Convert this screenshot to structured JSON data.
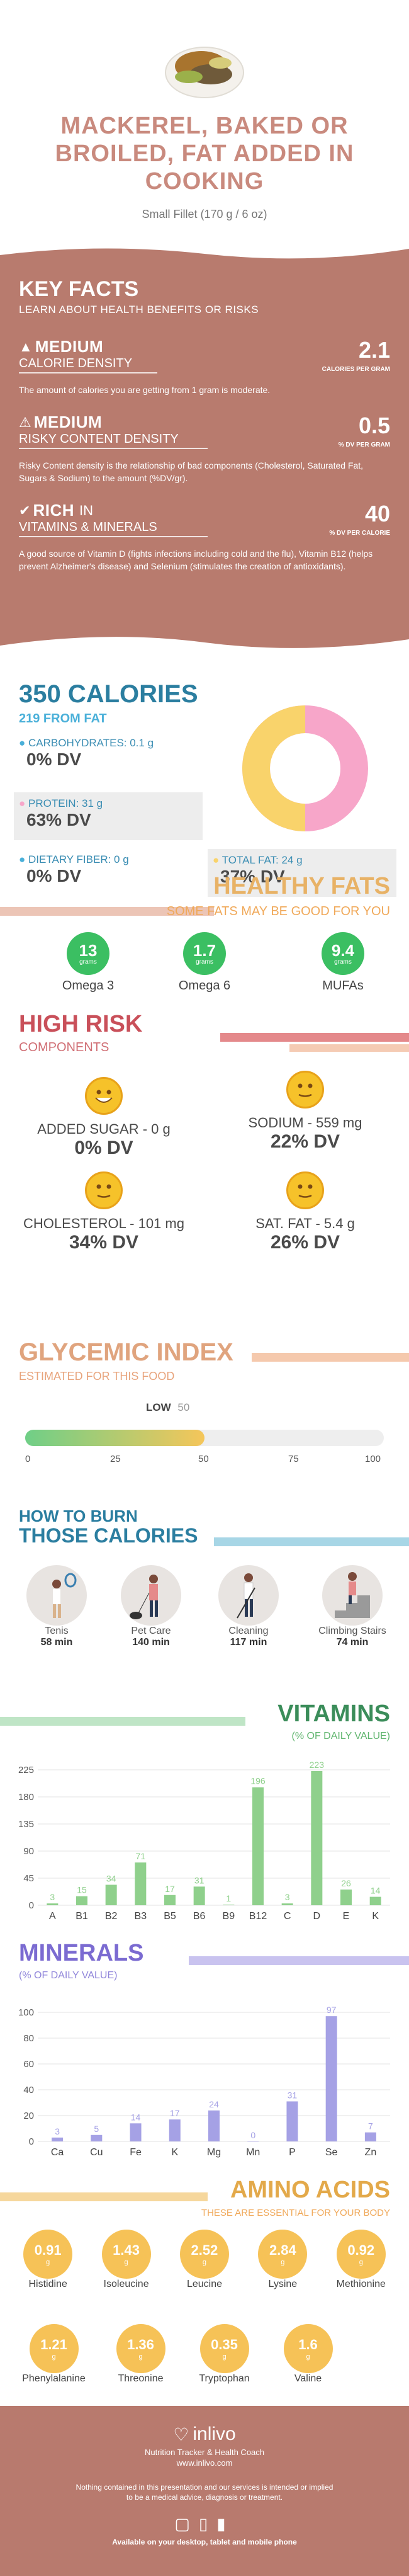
{
  "header": {
    "title_line1": "MACKEREL, BAKED OR",
    "title_line2": "BROILED, FAT ADDED IN",
    "title_line3": "COOKING",
    "serving": "Small Fillet (170 g / 6 oz)"
  },
  "key_facts": {
    "title": "KEY FACTS",
    "subtitle": "LEARN ABOUT HEALTH BENEFITS OR RISKS",
    "facts": [
      {
        "badge": "MEDIUM",
        "label": "CALORIE DENSITY",
        "value": "2.1",
        "unit": "CALORIES PER GRAM",
        "desc": "The amount of calories you are getting from 1 gram is moderate."
      },
      {
        "badge": "MEDIUM",
        "label": "RISKY CONTENT DENSITY",
        "value": "0.5",
        "unit": "% DV PER GRAM",
        "desc": "Risky Content density is the relationship of bad components (Cholesterol, Saturated Fat, Sugars & Sodium) to the amount (%DV/gr)."
      },
      {
        "badge": "RICH",
        "badge_suffix": "IN",
        "label": "VITAMINS & MINERALS",
        "value": "40",
        "unit": "% DV PER CALORIE",
        "desc": "A good source of Vitamin D (fights infections including cold and the flu), Vitamin B12 (helps prevent Alzheimer's disease) and Selenium (stimulates the creation of antioxidants)."
      }
    ]
  },
  "calories": {
    "title": "350 CALORIES",
    "subtitle": "219 FROM FAT",
    "carbs_label": "CARBOHYDRATES: 0.1 g",
    "carbs_dv": "0% DV",
    "protein_label": "PROTEIN: 31 g",
    "protein_dv": "63% DV",
    "fiber_label": "DIETARY FIBER: 0 g",
    "fiber_dv": "0% DV",
    "fat_label": "TOTAL FAT: 24 g",
    "fat_dv": "37% DV",
    "colors": {
      "protein": "#f7a6c9",
      "fat": "#f9d36b",
      "carbs": "#4ab0d9"
    }
  },
  "healthy_fats": {
    "title": "HEALTHY FATS",
    "subtitle": "SOME FATS MAY BE GOOD FOR YOU",
    "items": [
      {
        "value": "13",
        "unit": "grams",
        "label": "Omega 3"
      },
      {
        "value": "1.7",
        "unit": "grams",
        "label": "Omega 6"
      },
      {
        "value": "9.4",
        "unit": "grams",
        "label": "MUFAs"
      }
    ]
  },
  "high_risk": {
    "title": "HIGH RISK",
    "subtitle": "COMPONENTS",
    "items": [
      {
        "label": "ADDED SUGAR - 0 g",
        "dv": "0% DV",
        "face": "happy-face-icon"
      },
      {
        "label": "SODIUM - 559 mg",
        "dv": "22% DV",
        "face": "neutral-face-icon"
      },
      {
        "label": "CHOLESTEROL - 101 mg",
        "dv": "34% DV",
        "face": "neutral-face-icon"
      },
      {
        "label": "SAT. FAT - 5.4 g",
        "dv": "26% DV",
        "face": "neutral-face-icon"
      }
    ]
  },
  "glycemic": {
    "title": "GLYCEMIC INDEX",
    "subtitle": "ESTIMATED FOR THIS FOOD",
    "low_label": "LOW",
    "value": "50",
    "ticks": [
      "0",
      "25",
      "50",
      "75",
      "100"
    ]
  },
  "burn": {
    "title1": "HOW TO BURN",
    "title2": "THOSE CALORIES",
    "items": [
      {
        "label": "Tenis",
        "time": "58 min",
        "icon": "tennis-player-icon"
      },
      {
        "label": "Pet Care",
        "time": "140 min",
        "icon": "dog-walker-icon"
      },
      {
        "label": "Cleaning",
        "time": "117 min",
        "icon": "cleaning-person-icon"
      },
      {
        "label": "Climbing Stairs",
        "time": "74 min",
        "icon": "stair-climber-icon"
      }
    ]
  },
  "vitamins": {
    "title": "VITAMINS",
    "subtitle": "(% OF DAILY VALUE)"
  },
  "minerals": {
    "title": "MINERALS",
    "subtitle": "(% OF DAILY VALUE)"
  },
  "amino": {
    "title": "AMINO ACIDS",
    "subtitle": "THESE ARE ESSENTIAL FOR YOUR BODY",
    "items": [
      {
        "value": "0.91",
        "unit": "g",
        "label": "Histidine"
      },
      {
        "value": "1.43",
        "unit": "g",
        "label": "Isoleucine"
      },
      {
        "value": "2.52",
        "unit": "g",
        "label": "Leucine"
      },
      {
        "value": "2.84",
        "unit": "g",
        "label": "Lysine"
      },
      {
        "value": "0.92",
        "unit": "g",
        "label": "Methionine"
      },
      {
        "value": "1.21",
        "unit": "g",
        "label": "Phenylalanine"
      },
      {
        "value": "1.36",
        "unit": "g",
        "label": "Threonine"
      },
      {
        "value": "0.35",
        "unit": "g",
        "label": "Tryptophan"
      },
      {
        "value": "1.6",
        "unit": "g",
        "label": "Valine"
      }
    ]
  },
  "footer": {
    "brand": "inlivo",
    "tagline": "Nutrition Tracker & Health Coach",
    "url": "www.inlivo.com",
    "disclaimer1": "Nothing contained in this presentation and our services is intended or implied",
    "disclaimer2": "to be a medical advice, diagnosis or treatment.",
    "available": "Available on your desktop, tablet and mobile phone"
  },
  "chart_data": [
    {
      "type": "bar",
      "title": "VITAMINS",
      "ylabel": "(% OF DAILY VALUE)",
      "categories": [
        "A",
        "B1",
        "B2",
        "B3",
        "B5",
        "B6",
        "B9",
        "B12",
        "C",
        "D",
        "E",
        "K"
      ],
      "values": [
        3,
        15,
        34,
        71,
        17,
        31,
        1,
        196,
        3,
        223,
        26,
        14
      ],
      "ylim": [
        0,
        225
      ],
      "yticks": [
        "0",
        "45",
        "90",
        "135",
        "180",
        "225"
      ],
      "color": "#8fd08c"
    },
    {
      "type": "bar",
      "title": "MINERALS",
      "ylabel": "(% OF DAILY VALUE)",
      "categories": [
        "Ca",
        "Cu",
        "Fe",
        "K",
        "Mg",
        "Mn",
        "P",
        "Se",
        "Zn"
      ],
      "values": [
        3,
        5,
        14,
        17,
        24,
        0,
        31,
        97,
        7
      ],
      "ylim": [
        0,
        100
      ],
      "yticks": [
        "0",
        "20",
        "40",
        "60",
        "80",
        "100"
      ],
      "color": "#a5a1e5"
    }
  ]
}
